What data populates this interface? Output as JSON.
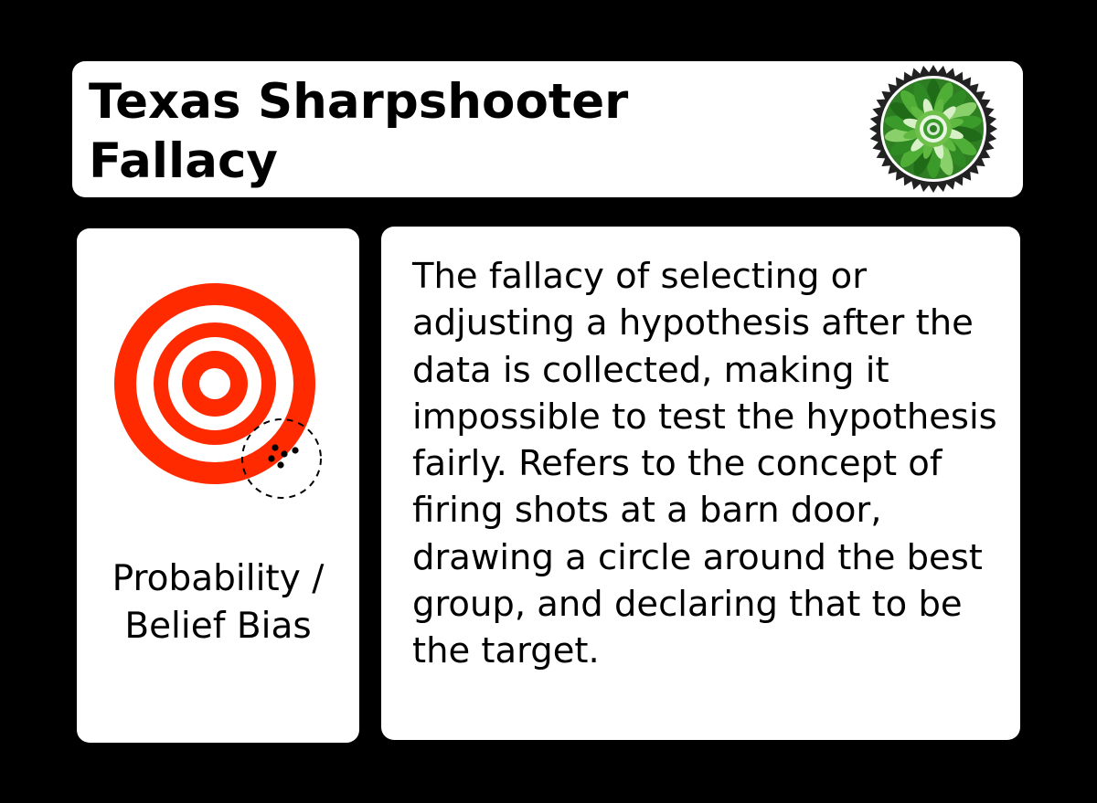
{
  "card": {
    "title": "Texas Sharpshooter Fallacy",
    "category": "Probability /\nBelief Bias",
    "description": "The fallacy of selecting or adjusting a hypothesis after the data is collected, making it impossible to test the hypothesis fairly. Refers to the concept of firing shots at a barn door, drawing a circle around the best group, and declaring that to be the target.",
    "badge_icon": "green-flower-seal-icon",
    "illustration_icon": "target-with-shot-cluster-icon"
  },
  "colors": {
    "background": "#000000",
    "panel": "#ffffff",
    "target_red": "#ff2a00",
    "badge_green": "#3a9a2a"
  }
}
